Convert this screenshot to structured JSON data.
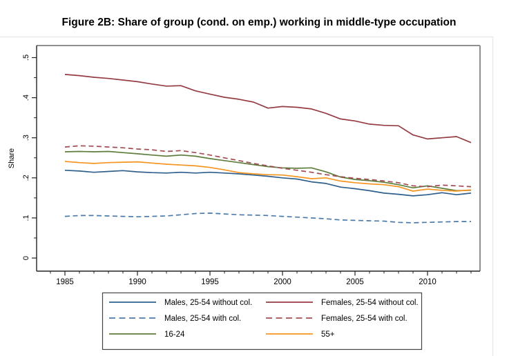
{
  "chart_data": {
    "type": "line",
    "title": "Figure 2B: Share of group (cond. on emp.) working in middle-type occupation",
    "xlabel": "",
    "ylabel": "Share",
    "grid": false,
    "legend_position": "bottom",
    "x": [
      1985,
      1986,
      1987,
      1988,
      1989,
      1990,
      1991,
      1992,
      1993,
      1994,
      1995,
      1996,
      1997,
      1998,
      1999,
      2000,
      2001,
      2002,
      2003,
      2004,
      2005,
      2006,
      2007,
      2008,
      2009,
      2010,
      2011,
      2012,
      2013
    ],
    "x_axis": {
      "major_ticks": [
        1985,
        1990,
        1995,
        2000,
        2005,
        2010
      ],
      "minor_tick_start": 1984,
      "minor_tick_end": 2013,
      "range": [
        1983.1,
        2013.6
      ]
    },
    "y_axis": {
      "label": "Share",
      "major_ticks": [
        0,
        0.1,
        0.2,
        0.3,
        0.4,
        0.5
      ],
      "tick_labels": [
        "0",
        ".1",
        ".2",
        ".3",
        ".4",
        ".5"
      ],
      "minor_ticks": [
        0.05,
        0.15,
        0.25,
        0.35,
        0.45
      ],
      "range": [
        -0.033,
        0.53
      ]
    },
    "series": [
      {
        "name": "Males, 25-54 without col.",
        "color": "#2e5f8c",
        "dash": "solid",
        "legend_column": 1,
        "values": [
          0.219,
          0.217,
          0.214,
          0.216,
          0.218,
          0.215,
          0.213,
          0.212,
          0.214,
          0.212,
          0.214,
          0.212,
          0.21,
          0.207,
          0.204,
          0.2,
          0.197,
          0.19,
          0.186,
          0.177,
          0.173,
          0.168,
          0.162,
          0.159,
          0.155,
          0.158,
          0.163,
          0.158,
          0.162
        ]
      },
      {
        "name": "Males, 25-54 with col.",
        "color": "#4a7aa9",
        "dash": "dashed",
        "legend_column": 1,
        "values": [
          0.104,
          0.106,
          0.106,
          0.105,
          0.104,
          0.103,
          0.104,
          0.105,
          0.108,
          0.111,
          0.112,
          0.11,
          0.108,
          0.107,
          0.106,
          0.104,
          0.102,
          0.1,
          0.098,
          0.095,
          0.094,
          0.093,
          0.092,
          0.089,
          0.088,
          0.089,
          0.09,
          0.091,
          0.091
        ]
      },
      {
        "name": "16-24",
        "color": "#5c7d3c",
        "dash": "solid",
        "legend_column": 1,
        "values": [
          0.265,
          0.266,
          0.265,
          0.266,
          0.263,
          0.26,
          0.257,
          0.254,
          0.257,
          0.254,
          0.248,
          0.243,
          0.238,
          0.233,
          0.228,
          0.225,
          0.224,
          0.225,
          0.215,
          0.202,
          0.196,
          0.193,
          0.189,
          0.183,
          0.175,
          0.18,
          0.174,
          0.168,
          0.169
        ]
      },
      {
        "name": "Females, 25-54 without col.",
        "color": "#943c42",
        "dash": "solid",
        "legend_column": 2,
        "values": [
          0.458,
          0.455,
          0.451,
          0.448,
          0.444,
          0.44,
          0.434,
          0.429,
          0.43,
          0.417,
          0.409,
          0.401,
          0.396,
          0.389,
          0.374,
          0.378,
          0.376,
          0.372,
          0.361,
          0.347,
          0.342,
          0.334,
          0.331,
          0.33,
          0.307,
          0.297,
          0.3,
          0.303,
          0.288
        ]
      },
      {
        "name": "Females, 25-54 with col.",
        "color": "#a34b52",
        "dash": "dashed",
        "legend_column": 2,
        "values": [
          0.277,
          0.28,
          0.279,
          0.277,
          0.275,
          0.272,
          0.27,
          0.266,
          0.268,
          0.263,
          0.257,
          0.25,
          0.243,
          0.236,
          0.23,
          0.224,
          0.219,
          0.214,
          0.208,
          0.203,
          0.199,
          0.196,
          0.192,
          0.188,
          0.18,
          0.178,
          0.182,
          0.18,
          0.178
        ]
      },
      {
        "name": "55+",
        "color": "#f5941f",
        "dash": "solid",
        "legend_column": 2,
        "values": [
          0.241,
          0.238,
          0.236,
          0.238,
          0.239,
          0.24,
          0.237,
          0.234,
          0.232,
          0.23,
          0.226,
          0.22,
          0.213,
          0.21,
          0.208,
          0.207,
          0.203,
          0.198,
          0.2,
          0.192,
          0.188,
          0.185,
          0.183,
          0.178,
          0.167,
          0.172,
          0.169,
          0.167,
          0.17
        ]
      }
    ],
    "frame_colors": {
      "axis": "#222222",
      "outer": "#8e8e8e",
      "figure_border": "#e9e9e9",
      "legend_border": "#444444"
    }
  }
}
